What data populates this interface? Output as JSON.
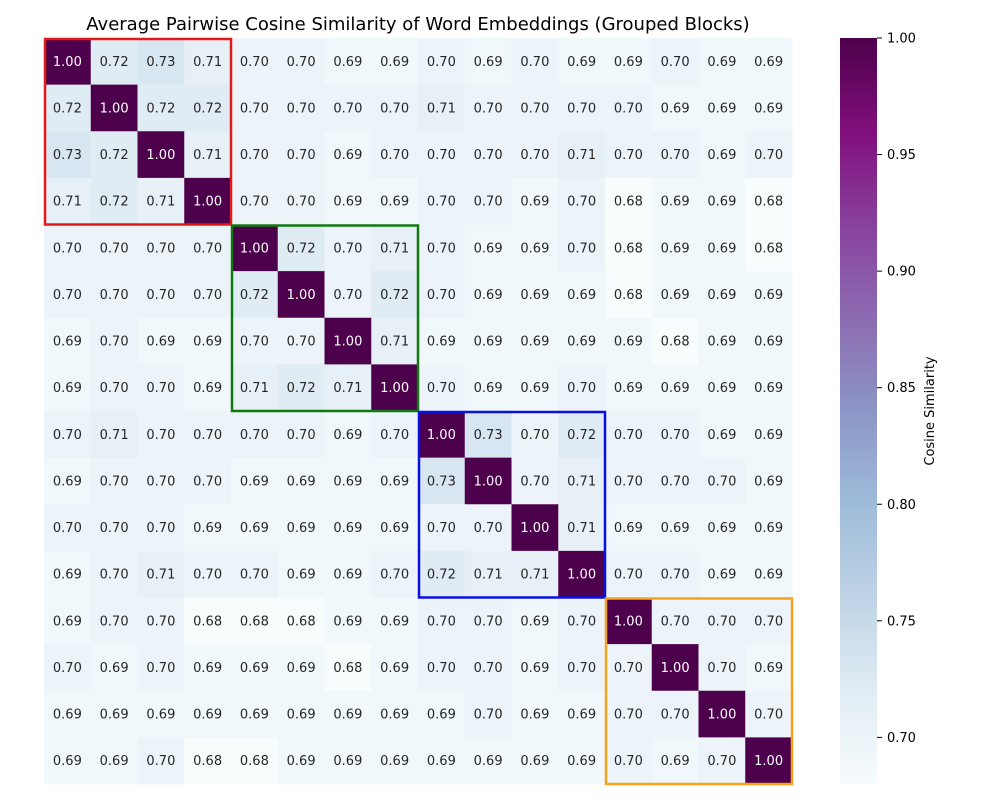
{
  "chart_data": {
    "type": "heatmap",
    "title": "Average Pairwise Cosine Similarity of Word Embeddings (Grouped Blocks)",
    "colorbar": {
      "label": "Cosine Similarity",
      "ticks": [
        "0.70",
        "0.75",
        "0.80",
        "0.85",
        "0.90",
        "0.95",
        "1.00"
      ],
      "vmin": 0.68,
      "vmax": 1.0
    },
    "colormap": "BuPu",
    "annotation_format": "2 decimals",
    "values": [
      [
        1.0,
        0.72,
        0.73,
        0.71,
        0.7,
        0.7,
        0.69,
        0.69,
        0.7,
        0.69,
        0.7,
        0.69,
        0.69,
        0.7,
        0.69,
        0.69
      ],
      [
        0.72,
        1.0,
        0.72,
        0.72,
        0.7,
        0.7,
        0.7,
        0.7,
        0.71,
        0.7,
        0.7,
        0.7,
        0.7,
        0.69,
        0.69,
        0.69
      ],
      [
        0.73,
        0.72,
        1.0,
        0.71,
        0.7,
        0.7,
        0.69,
        0.7,
        0.7,
        0.7,
        0.7,
        0.71,
        0.7,
        0.7,
        0.69,
        0.7
      ],
      [
        0.71,
        0.72,
        0.71,
        1.0,
        0.7,
        0.7,
        0.69,
        0.69,
        0.7,
        0.7,
        0.69,
        0.7,
        0.68,
        0.69,
        0.69,
        0.68
      ],
      [
        0.7,
        0.7,
        0.7,
        0.7,
        1.0,
        0.72,
        0.7,
        0.71,
        0.7,
        0.69,
        0.69,
        0.7,
        0.68,
        0.69,
        0.69,
        0.68
      ],
      [
        0.7,
        0.7,
        0.7,
        0.7,
        0.72,
        1.0,
        0.7,
        0.72,
        0.7,
        0.69,
        0.69,
        0.69,
        0.68,
        0.69,
        0.69,
        0.69
      ],
      [
        0.69,
        0.7,
        0.69,
        0.69,
        0.7,
        0.7,
        1.0,
        0.71,
        0.69,
        0.69,
        0.69,
        0.69,
        0.69,
        0.68,
        0.69,
        0.69
      ],
      [
        0.69,
        0.7,
        0.7,
        0.69,
        0.71,
        0.72,
        0.71,
        1.0,
        0.7,
        0.69,
        0.69,
        0.7,
        0.69,
        0.69,
        0.69,
        0.69
      ],
      [
        0.7,
        0.71,
        0.7,
        0.7,
        0.7,
        0.7,
        0.69,
        0.7,
        1.0,
        0.73,
        0.7,
        0.72,
        0.7,
        0.7,
        0.69,
        0.69
      ],
      [
        0.69,
        0.7,
        0.7,
        0.7,
        0.69,
        0.69,
        0.69,
        0.69,
        0.73,
        1.0,
        0.7,
        0.71,
        0.7,
        0.7,
        0.7,
        0.69
      ],
      [
        0.7,
        0.7,
        0.7,
        0.69,
        0.69,
        0.69,
        0.69,
        0.69,
        0.7,
        0.7,
        1.0,
        0.71,
        0.69,
        0.69,
        0.69,
        0.69
      ],
      [
        0.69,
        0.7,
        0.71,
        0.7,
        0.7,
        0.69,
        0.69,
        0.7,
        0.72,
        0.71,
        0.71,
        1.0,
        0.7,
        0.7,
        0.69,
        0.69
      ],
      [
        0.69,
        0.7,
        0.7,
        0.68,
        0.68,
        0.68,
        0.69,
        0.69,
        0.7,
        0.7,
        0.69,
        0.7,
        1.0,
        0.7,
        0.7,
        0.7
      ],
      [
        0.7,
        0.69,
        0.7,
        0.69,
        0.69,
        0.69,
        0.68,
        0.69,
        0.7,
        0.7,
        0.69,
        0.7,
        0.7,
        1.0,
        0.7,
        0.69
      ],
      [
        0.69,
        0.69,
        0.69,
        0.69,
        0.69,
        0.69,
        0.69,
        0.69,
        0.69,
        0.7,
        0.69,
        0.69,
        0.7,
        0.7,
        1.0,
        0.7
      ],
      [
        0.69,
        0.69,
        0.7,
        0.68,
        0.68,
        0.69,
        0.69,
        0.69,
        0.69,
        0.69,
        0.69,
        0.69,
        0.7,
        0.69,
        0.7,
        1.0
      ]
    ],
    "blocks": [
      {
        "start": 0,
        "end": 3,
        "color": "#e31a1c"
      },
      {
        "start": 4,
        "end": 7,
        "color": "#107a10"
      },
      {
        "start": 8,
        "end": 11,
        "color": "#0a10e0"
      },
      {
        "start": 12,
        "end": 15,
        "color": "#f5a31a"
      }
    ]
  }
}
